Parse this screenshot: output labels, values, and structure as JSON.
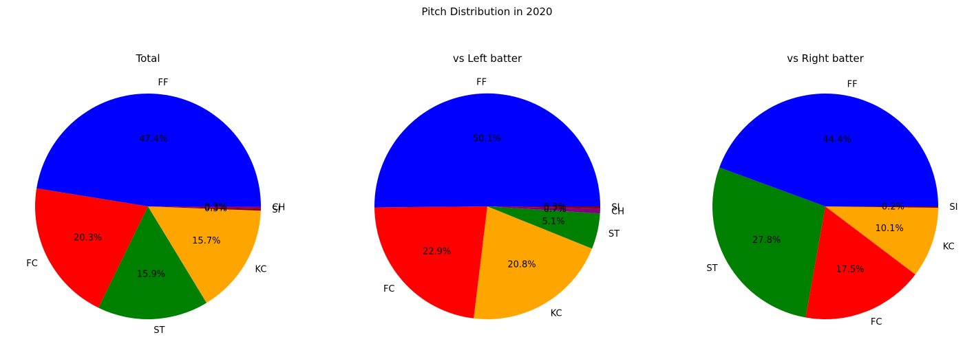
{
  "figure": {
    "suptitle": "Pitch Distribution in 2020"
  },
  "colors": {
    "FF": "#0000ff",
    "FC": "#ff0000",
    "ST": "#008000",
    "KC": "#ffa500",
    "CH": "#800080",
    "SI": "#8b0000"
  },
  "chart_data": [
    {
      "type": "pie",
      "title": "Total",
      "categories": [
        "FF",
        "FC",
        "ST",
        "KC",
        "SI",
        "CH"
      ],
      "values": [
        47.4,
        20.3,
        15.9,
        15.7,
        0.3,
        0.3
      ],
      "labels_pct": [
        "47.4%",
        "20.3%",
        "15.9%",
        "15.7%",
        "0.3%",
        "0.3%"
      ]
    },
    {
      "type": "pie",
      "title": "vs Left batter",
      "categories": [
        "FF",
        "FC",
        "KC",
        "ST",
        "CH",
        "SI"
      ],
      "values": [
        50.1,
        22.9,
        20.8,
        5.1,
        0.7,
        0.3
      ],
      "labels_pct": [
        "50.1%",
        "22.9%",
        "20.8%",
        "5.1%",
        "0.7%",
        "0.3%"
      ]
    },
    {
      "type": "pie",
      "title": "vs Right batter",
      "categories": [
        "FF",
        "ST",
        "FC",
        "KC",
        "SI"
      ],
      "values": [
        44.4,
        27.8,
        17.5,
        10.1,
        0.2
      ],
      "labels_pct": [
        "44.4%",
        "27.8%",
        "17.5%",
        "10.1%",
        "0.2%"
      ]
    }
  ]
}
